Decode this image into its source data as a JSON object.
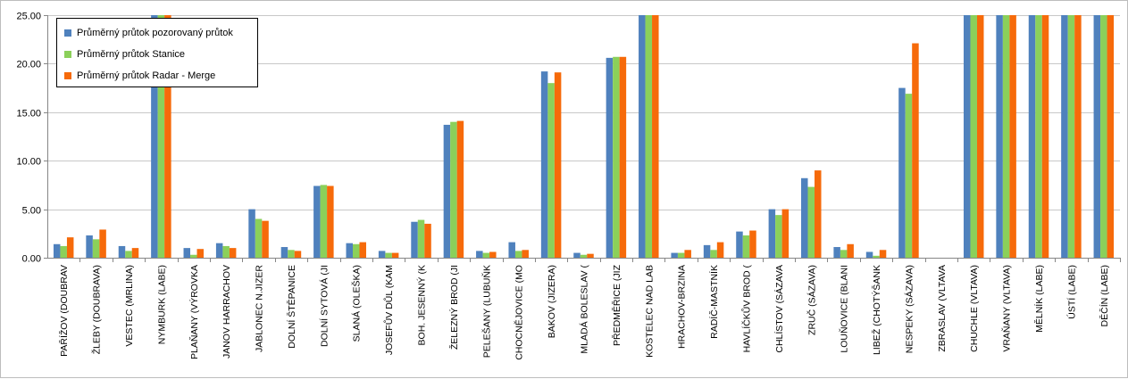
{
  "chart_data": {
    "type": "bar",
    "ylim": [
      0,
      25
    ],
    "yticks": [
      "0.00",
      "5.00",
      "10.00",
      "15.00",
      "20.00",
      "25.00"
    ],
    "grid": true,
    "legend_position": "top-left",
    "categories": [
      "PAŘÍŽOV (DOUBRAV",
      "ŽLEBY (DOUBRAVA)",
      "VESTEC (MRLINA)",
      "NYMBURK (LABE)",
      "PLAŇANY (VÝROVKA",
      "JANOV HARRACHOV",
      "JABLONEC N.JIZER",
      "DOLNÍ ŠTĚPANICE",
      "DOLNÍ SYTOVÁ (JI",
      "SLANÁ (OLEŠKA)",
      "JOSEFŮV DŮL (KAM",
      "BOH. JESENNÝ (K",
      "ŽELEZNÝ BROD (JI",
      "PELEŠANY (LUBUŇK",
      "CHOCNĚJOVICE (MO",
      "BAKOV (JIZERA)",
      "MLADÁ BOLESLAV (",
      "PŘEDMĚŘICE (JIZ",
      "KOSTELEC NAD LAB",
      "HRACHOV-BRZINA",
      "RADÍČ-MASTNÍK",
      "HAVLÍČKŮV BROD (",
      "CHLÍSTOV (SÁZAVA",
      "ZRUČ (SÁZAVA)",
      "LOUŇOVICE (BLANI",
      "LIBEŽ (CHOTÝŠANK",
      "NESPEKY (SÁZAVA)",
      "ZBRASLAV (VLTAVA",
      "CHUCHLE (VLTAVA)",
      "VRAŇANY (VLTAVA)",
      "MĚLNÍK (LABE)",
      "ÚSTÍ (LABE)",
      "DĚČÍN (LABE)"
    ],
    "series": [
      {
        "name": "Průměrný průtok pozorovaný průtok",
        "color": "#4f81bd",
        "values": [
          1.4,
          2.3,
          1.2,
          25,
          1.0,
          1.5,
          5.0,
          1.1,
          7.4,
          1.5,
          0.7,
          3.7,
          13.7,
          0.7,
          1.6,
          19.2,
          0.5,
          20.6,
          25,
          0.5,
          1.3,
          2.7,
          5.0,
          8.2,
          1.1,
          0.6,
          17.5,
          0,
          25,
          25,
          25,
          25,
          25
        ]
      },
      {
        "name": "Průměrný průtok Stanice",
        "color": "#8bd05a",
        "values": [
          1.2,
          1.9,
          0.7,
          25,
          0.3,
          1.2,
          4.0,
          0.8,
          7.5,
          1.4,
          0.5,
          3.9,
          14.0,
          0.5,
          0.7,
          18.0,
          0.3,
          20.7,
          25,
          0.5,
          0.8,
          2.3,
          4.4,
          7.3,
          0.8,
          0.2,
          16.9,
          0,
          25,
          25,
          25,
          25,
          25
        ]
      },
      {
        "name": "Průměrný průtok Radar - Merge",
        "color": "#f66a0a",
        "values": [
          2.1,
          2.9,
          1.0,
          25,
          0.9,
          1.0,
          3.8,
          0.7,
          7.4,
          1.6,
          0.5,
          3.5,
          14.1,
          0.6,
          0.8,
          19.1,
          0.4,
          20.7,
          25,
          0.8,
          1.6,
          2.8,
          5.0,
          9.0,
          1.4,
          0.8,
          22.1,
          0,
          25,
          25,
          25,
          25,
          25
        ]
      }
    ]
  }
}
